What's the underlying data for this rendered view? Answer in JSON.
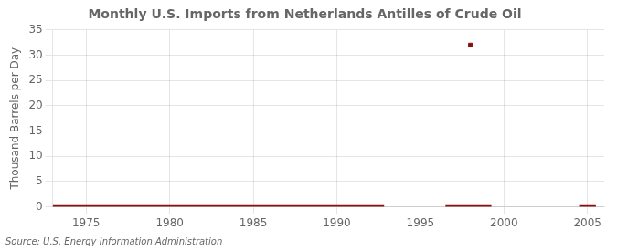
{
  "chart_data": {
    "type": "line",
    "title": "Monthly U.S. Imports from Netherlands Antilles of Crude Oil",
    "ylabel": "Thousand Barrels per Day",
    "annotations": [
      "Source: U.S. Energy Information Administration"
    ],
    "xlim": [
      1973.0,
      2006.0
    ],
    "xticks": [
      1975,
      1980,
      1985,
      1990,
      1995,
      2000,
      2005
    ],
    "ylim": [
      0,
      35
    ],
    "yticks": [
      0,
      5,
      10,
      15,
      20,
      25,
      30,
      35
    ],
    "grid": true,
    "series": [
      {
        "type": "line",
        "color": "#8b1010",
        "x": [
          1973.0,
          1992.83
        ],
        "values": [
          0,
          0
        ]
      },
      {
        "type": "line",
        "color": "#8b1010",
        "x": [
          1996.5,
          1999.25
        ],
        "values": [
          0,
          0
        ]
      },
      {
        "type": "line",
        "color": "#8b1010",
        "x": [
          2004.5,
          2005.5
        ],
        "values": [
          0,
          0
        ]
      },
      {
        "type": "scatter",
        "color": "#8b1010",
        "marker": "square",
        "x": [
          1998.0
        ],
        "values": [
          32
        ]
      }
    ]
  }
}
